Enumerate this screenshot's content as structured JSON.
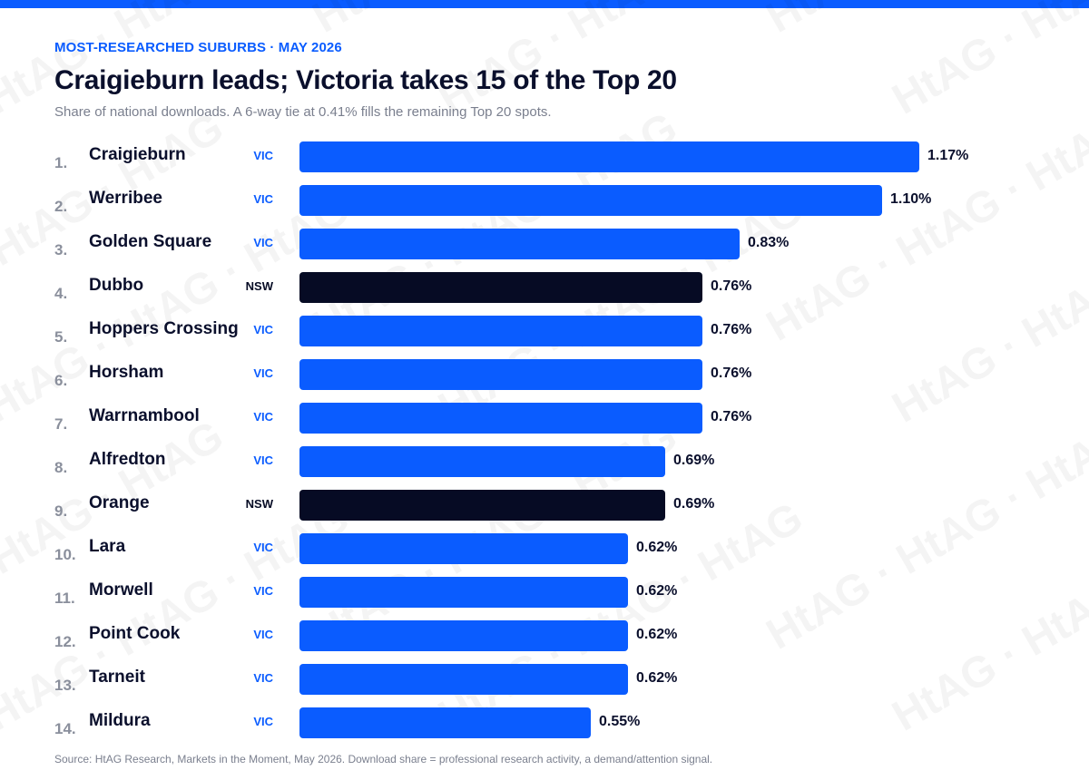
{
  "header": {
    "eyebrow": "MOST-RESEARCHED SUBURBS · MAY 2026",
    "title": "Craigieburn leads; Victoria takes 15 of the Top 20",
    "subtitle": "Share of national downloads. A 6-way tie at 0.41% fills the remaining Top 20 spots."
  },
  "footer": {
    "source": "Source: HtAG Research, Markets in the Moment, May 2026. Download share = professional research activity, a demand/attention signal."
  },
  "watermark": {
    "text": "HtAG"
  },
  "colors": {
    "vic": "#0a5cff",
    "nsw": "#060b24",
    "accent": "#0a5cff"
  },
  "chart_data": {
    "type": "bar",
    "orientation": "horizontal",
    "unit": "%",
    "categories": [
      "Craigieburn",
      "Werribee",
      "Golden Square",
      "Dubbo",
      "Hoppers Crossing",
      "Horsham",
      "Warrnambool",
      "Alfredton",
      "Orange",
      "Lara",
      "Morwell",
      "Point Cook",
      "Tarneit",
      "Mildura"
    ],
    "ranks": [
      "1.",
      "2.",
      "3.",
      "4.",
      "5.",
      "6.",
      "7.",
      "8.",
      "9.",
      "10.",
      "11.",
      "12.",
      "13.",
      "14."
    ],
    "states": [
      "VIC",
      "VIC",
      "VIC",
      "NSW",
      "VIC",
      "VIC",
      "VIC",
      "VIC",
      "NSW",
      "VIC",
      "VIC",
      "VIC",
      "VIC",
      "VIC"
    ],
    "values": [
      1.17,
      1.1,
      0.83,
      0.76,
      0.76,
      0.76,
      0.76,
      0.69,
      0.69,
      0.62,
      0.62,
      0.62,
      0.62,
      0.55
    ],
    "value_labels": [
      "1.17%",
      "1.10%",
      "0.83%",
      "0.76%",
      "0.76%",
      "0.76%",
      "0.76%",
      "0.69%",
      "0.69%",
      "0.62%",
      "0.62%",
      "0.62%",
      "0.62%",
      "0.55%"
    ],
    "xlim": [
      0,
      1.17
    ],
    "grid": false,
    "legend": "none"
  }
}
